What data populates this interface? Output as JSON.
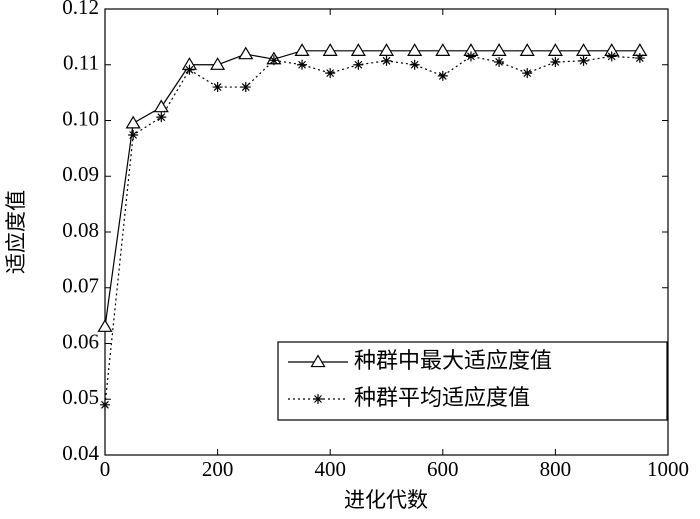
{
  "chart_data": {
    "type": "line",
    "xlabel": "进化代数",
    "ylabel": "适应度值",
    "x": [
      0,
      50,
      100,
      150,
      200,
      250,
      300,
      350,
      400,
      450,
      500,
      550,
      600,
      650,
      700,
      750,
      800,
      850,
      900,
      950
    ],
    "series": [
      {
        "name": "种群中最大适应度值",
        "color": "#000000",
        "linestyle": "solid",
        "marker": "triangle",
        "values": [
          0.063,
          0.0995,
          0.1024,
          0.11,
          0.11,
          0.1119,
          0.111,
          0.1125,
          0.1125,
          0.1125,
          0.1125,
          0.1125,
          0.1125,
          0.1125,
          0.1125,
          0.1125,
          0.1125,
          0.1125,
          0.1125,
          0.1125
        ]
      },
      {
        "name": "种群平均适应度值",
        "color": "#000000",
        "linestyle": "dotted",
        "marker": "asterisk",
        "values": [
          0.049,
          0.0974,
          0.1006,
          0.1091,
          0.106,
          0.106,
          0.1108,
          0.11,
          0.1085,
          0.11,
          0.1107,
          0.11,
          0.108,
          0.1115,
          0.1105,
          0.1085,
          0.1105,
          0.1107,
          0.1115,
          0.1112
        ]
      }
    ],
    "xlim": [
      0,
      1000
    ],
    "xticks": [
      0,
      200,
      400,
      600,
      800,
      1000
    ],
    "ylim": [
      0.04,
      0.12
    ],
    "yticks": [
      0.04,
      0.05,
      0.06,
      0.07,
      0.08,
      0.09,
      {
        "value": 0.1,
        "label": "0.10"
      },
      0.11,
      0.12
    ],
    "grid": false,
    "legend": "lower right"
  }
}
